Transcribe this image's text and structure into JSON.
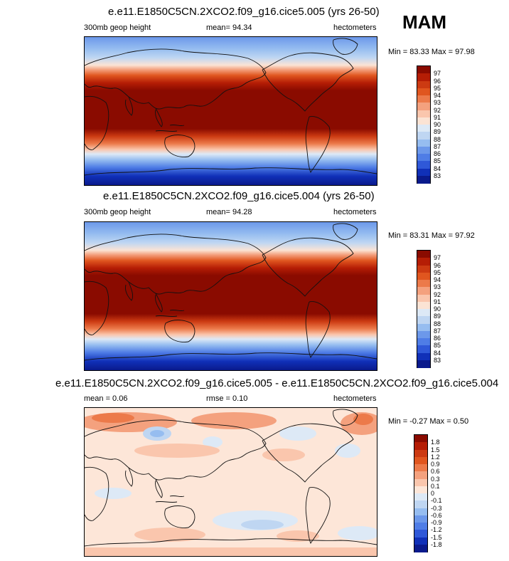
{
  "season": "MAM",
  "units_note": "hectometers",
  "panels": [
    {
      "id": "top",
      "title": "e.e11.E1850C5CN.2XCO2.f09_g16.cice5.005 (yrs 26-50)",
      "left_label": "300mb geop height",
      "center_label": "mean=  94.34",
      "right_label": "hectometers",
      "minmax": "Min =  83.33 Max =  97.98",
      "colorbar": {
        "levels": [
          "97",
          "96",
          "95",
          "94",
          "93",
          "92",
          "91",
          "90",
          "89",
          "88",
          "87",
          "86",
          "85",
          "84",
          "83"
        ],
        "colors": [
          "#8a0b00",
          "#b51d05",
          "#cc3a12",
          "#e0561f",
          "#ec7a4a",
          "#f4a17e",
          "#fac6ad",
          "#fbe3d4",
          "#dde9f6",
          "#bfd6f2",
          "#96bdf0",
          "#6c98ea",
          "#4f7de6",
          "#2f58d8",
          "#1030b8",
          "#0a1a8c"
        ]
      }
    },
    {
      "id": "middle",
      "title": "e.e11.E1850C5CN.2XCO2.f09_g16.cice5.004 (yrs 26-50)",
      "left_label": "300mb geop height",
      "center_label": "mean=  94.28",
      "right_label": "hectometers",
      "minmax": "Min =  83.31 Max =  97.92",
      "colorbar": {
        "levels": [
          "97",
          "96",
          "95",
          "94",
          "93",
          "92",
          "91",
          "90",
          "89",
          "88",
          "87",
          "86",
          "85",
          "84",
          "83"
        ],
        "colors": [
          "#8a0b00",
          "#b51d05",
          "#cc3a12",
          "#e0561f",
          "#ec7a4a",
          "#f4a17e",
          "#fac6ad",
          "#fbe3d4",
          "#dde9f6",
          "#bfd6f2",
          "#96bdf0",
          "#6c98ea",
          "#4f7de6",
          "#2f58d8",
          "#1030b8",
          "#0a1a8c"
        ]
      }
    },
    {
      "id": "diff",
      "title": "e.e11.E1850C5CN.2XCO2.f09_g16.cice5.005 - e.e11.E1850C5CN.2XCO2.f09_g16.cice5.004",
      "left_label": "mean =  0.06",
      "center_label": "rmse =  0.10",
      "right_label": "hectometers",
      "minmax": "Min =  -0.27 Max =  0.50",
      "colorbar": {
        "levels": [
          "1.8",
          "1.5",
          "1.2",
          "0.9",
          "0.6",
          "0.3",
          "0.1",
          "0",
          "-0.1",
          "-0.3",
          "-0.6",
          "-0.9",
          "-1.2",
          "-1.5",
          "-1.8"
        ],
        "colors": [
          "#8a0b00",
          "#b51d05",
          "#cc3a12",
          "#e0561f",
          "#ec7a4a",
          "#f4a17e",
          "#fac6ad",
          "#fde6d8",
          "#dde9f6",
          "#bfd6f2",
          "#96bdf0",
          "#6c98ea",
          "#4f7de6",
          "#2f58d8",
          "#1030b8",
          "#0a1a8c"
        ]
      }
    }
  ]
}
